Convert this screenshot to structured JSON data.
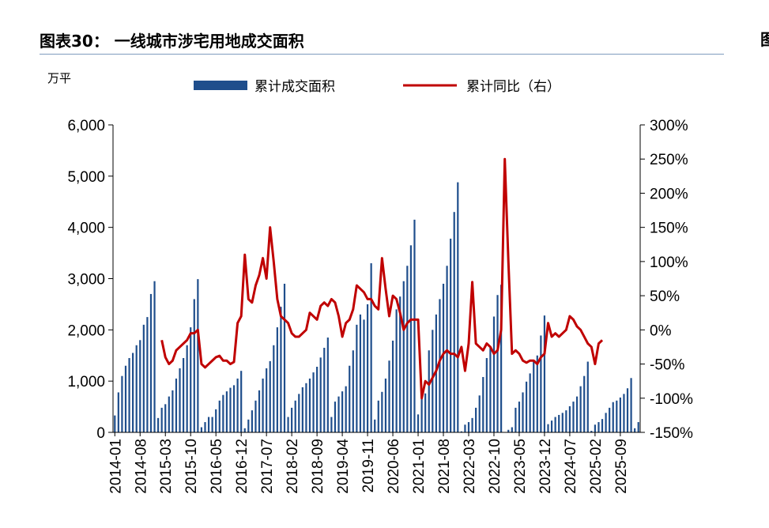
{
  "title": "图表30：  一线城市涉宅用地成交面积",
  "right_fragment": "图",
  "colors": {
    "bar": "#1f4e8c",
    "line": "#c00000",
    "axis": "#000000",
    "title_rule": "#7f9cbf"
  },
  "chart_data": {
    "type": "bar",
    "unit_label": "万平",
    "legend": [
      "累计成交面积",
      "累计同比（右）"
    ],
    "grid": false,
    "legend_position": "top",
    "y_left": {
      "ticks": [
        "6,000",
        "5,000",
        "4,000",
        "3,000",
        "2,000",
        "1,000",
        "0"
      ],
      "range": [
        0,
        6000
      ]
    },
    "y_right": {
      "ticks": [
        "300%",
        "250%",
        "200%",
        "150%",
        "100%",
        "50%",
        "0%",
        "-50%",
        "-100%",
        "-150%"
      ],
      "range": [
        -150,
        300
      ]
    },
    "x_tick_labels": [
      "2014-01",
      "2014-08",
      "2015-03",
      "2015-10",
      "2016-05",
      "2016-12",
      "2017-07",
      "2018-02",
      "2018-09",
      "2019-04",
      "2019-11",
      "2020-06",
      "2021-01",
      "2021-08",
      "2022-03",
      "2022-10",
      "2023-05",
      "2023-12",
      "2024-07",
      "2025-02",
      "2025-09"
    ],
    "period_start": "2014-01",
    "series": [
      {
        "name": "累计成交面积",
        "axis": "left",
        "values": [
          330,
          780,
          1100,
          1300,
          1450,
          1550,
          1700,
          1800,
          2100,
          2250,
          2700,
          2950,
          280,
          480,
          550,
          700,
          820,
          1050,
          1250,
          1450,
          1700,
          2050,
          2600,
          2990,
          100,
          200,
          300,
          300,
          450,
          620,
          730,
          800,
          870,
          920,
          1050,
          1200,
          80,
          250,
          430,
          620,
          820,
          1050,
          1250,
          1390,
          1700,
          2050,
          2450,
          2900,
          300,
          480,
          620,
          750,
          880,
          960,
          1050,
          1170,
          1280,
          1460,
          1650,
          1850,
          300,
          600,
          700,
          800,
          900,
          1300,
          1600,
          2100,
          2300,
          2200,
          2500,
          3300,
          250,
          620,
          790,
          1050,
          1400,
          1790,
          2400,
          2650,
          2950,
          3250,
          3650,
          4150,
          350,
          700,
          760,
          1600,
          2000,
          2300,
          2600,
          2900,
          3250,
          3780,
          4300,
          4880,
          20,
          150,
          200,
          280,
          480,
          720,
          1080,
          1450,
          1650,
          2260,
          2680,
          2880,
          0,
          50,
          100,
          480,
          600,
          780,
          990,
          1150,
          1390,
          1500,
          1890,
          2280,
          160,
          230,
          300,
          340,
          380,
          430,
          510,
          600,
          700,
          900,
          1100,
          1380,
          30,
          150,
          200,
          260,
          380,
          480,
          590,
          620,
          680,
          750,
          860,
          1060,
          80,
          200
        ]
      },
      {
        "name": "累计同比（右）",
        "axis": "right",
        "start_index": 13,
        "values": [
          -15,
          -40,
          -50,
          -45,
          -30,
          -25,
          -20,
          -15,
          -5,
          -5,
          0,
          -50,
          -55,
          -50,
          -45,
          -40,
          -38,
          -45,
          -45,
          -50,
          -47,
          10,
          20,
          110,
          45,
          40,
          65,
          80,
          105,
          75,
          150,
          100,
          45,
          20,
          15,
          10,
          -5,
          -10,
          -10,
          -5,
          0,
          25,
          20,
          15,
          35,
          40,
          35,
          45,
          40,
          20,
          -10,
          10,
          15,
          30,
          65,
          60,
          55,
          45,
          45,
          35,
          30,
          105,
          60,
          20,
          50,
          45,
          25,
          0,
          10,
          15,
          15,
          15,
          -100,
          -75,
          -80,
          -70,
          -60,
          -45,
          -35,
          -30,
          -35,
          -35,
          -40,
          -25,
          -60,
          -20,
          70,
          -20,
          -25,
          -30,
          -20,
          -25,
          -35,
          -30,
          0,
          250,
          100,
          -35,
          -30,
          -35,
          -45,
          -48,
          -45,
          -45,
          -50,
          -40,
          -35,
          10,
          -10,
          -5,
          -10,
          -5,
          0,
          20,
          15,
          5,
          0,
          -10,
          -20,
          -25,
          -50,
          -20,
          -15
        ]
      }
    ]
  }
}
